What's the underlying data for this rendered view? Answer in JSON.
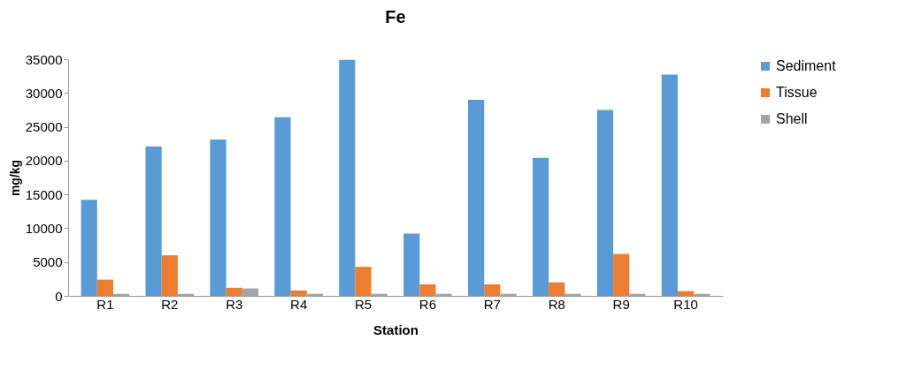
{
  "chart_data": {
    "type": "bar",
    "title": "Fe",
    "xlabel": "Station",
    "ylabel": "mg/kg",
    "categories": [
      "R1",
      "R2",
      "R3",
      "R4",
      "R5",
      "R6",
      "R7",
      "R8",
      "R9",
      "R10"
    ],
    "series": [
      {
        "name": "Sediment",
        "color": "#5b9bd5",
        "values": [
          14200,
          22100,
          23100,
          26400,
          34900,
          9200,
          29000,
          20400,
          27500,
          32700
        ]
      },
      {
        "name": "Tissue",
        "color": "#ed7d31",
        "values": [
          2400,
          6000,
          1200,
          800,
          4300,
          1700,
          1700,
          2000,
          6200,
          700
        ]
      },
      {
        "name": "Shell",
        "color": "#a5a5a5",
        "values": [
          300,
          300,
          1100,
          300,
          300,
          300,
          300,
          300,
          300,
          300
        ]
      }
    ],
    "ylim": [
      0,
      35000
    ],
    "yticks": [
      0,
      5000,
      10000,
      15000,
      20000,
      25000,
      30000,
      35000
    ],
    "grid": false,
    "legend": "right"
  }
}
